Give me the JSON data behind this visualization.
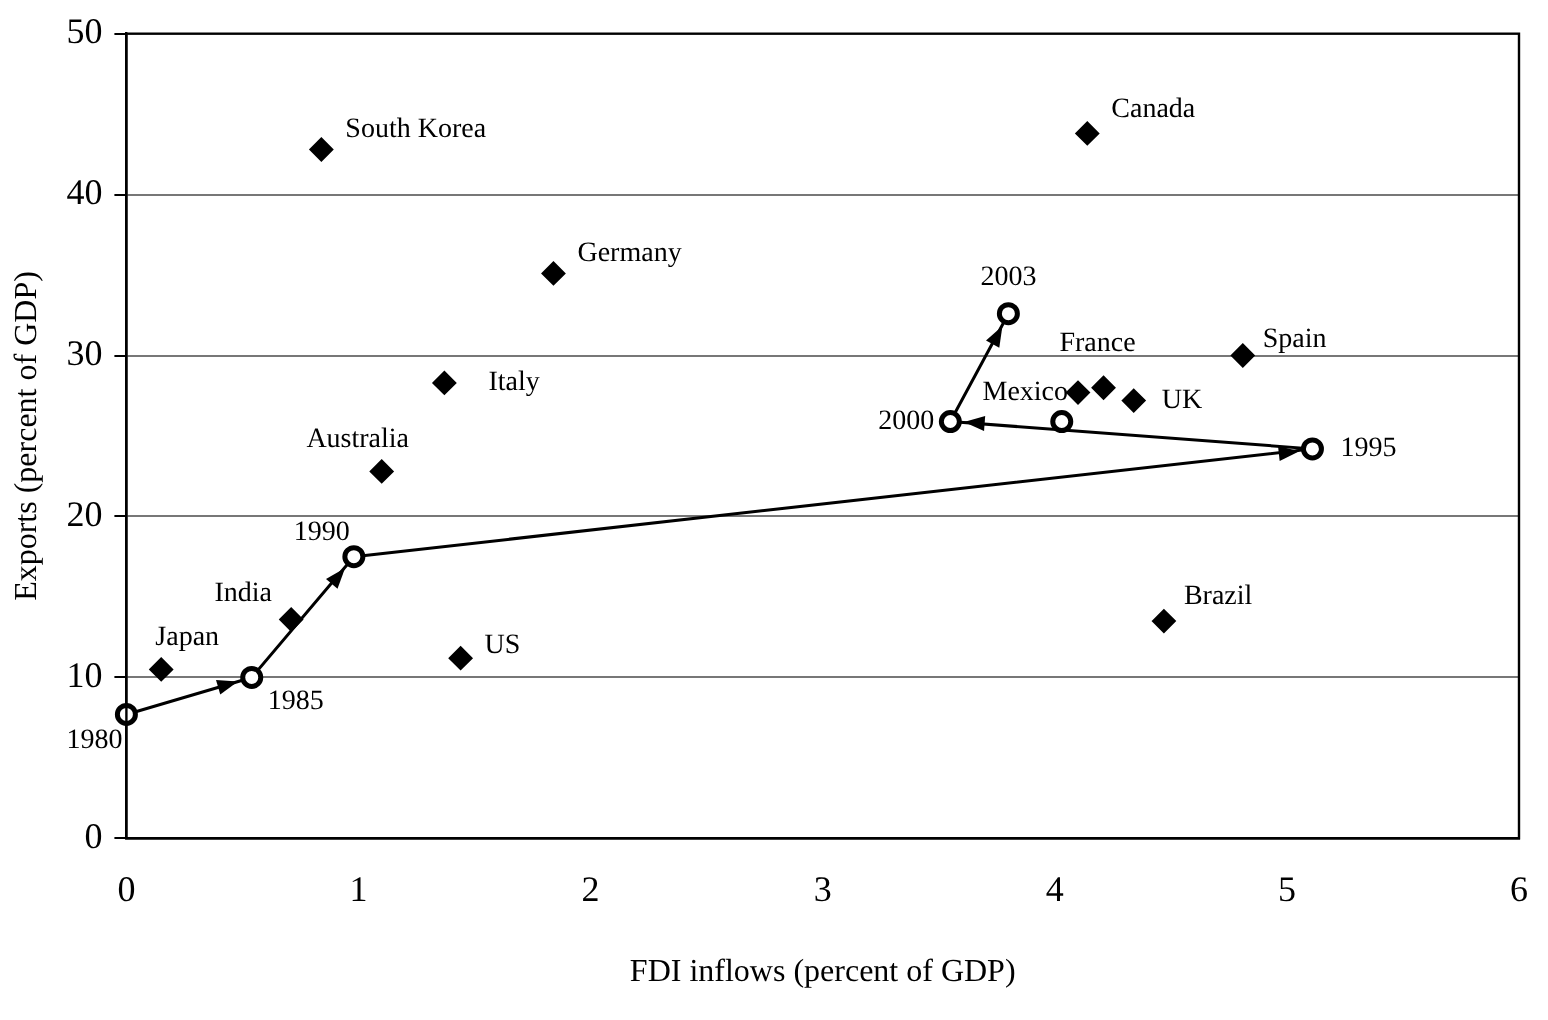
{
  "chart_data": {
    "type": "scatter",
    "xlabel": "FDI inflows (percent of GDP)",
    "ylabel": "Exports (percent of GDP)",
    "xlim": [
      0,
      6
    ],
    "xticks": [
      0,
      1,
      2,
      3,
      4,
      5,
      6
    ],
    "ylim": [
      0,
      50
    ],
    "yticks": [
      0,
      10,
      20,
      30,
      40,
      50
    ],
    "grid": "y",
    "legend": false,
    "series": [
      {
        "marker": "diamond",
        "color": "#000000",
        "x": [
          0.84,
          4.14,
          1.84,
          1.37,
          1.1,
          4.81,
          4.21,
          4.1,
          4.34,
          4.47,
          0.71,
          0.15,
          1.44
        ],
        "values": [
          42.8,
          43.8,
          35.1,
          28.3,
          22.8,
          30.0,
          28.0,
          27.7,
          27.2,
          13.5,
          13.6,
          10.5,
          11.2
        ]
      },
      {
        "type": "line",
        "marker": "circle",
        "line_style": "solid",
        "color": "#000000",
        "x": [
          0,
          0.54,
          0.98,
          5.11,
          3.55,
          3.8
        ],
        "values": [
          7.7,
          10.0,
          17.5,
          24.2,
          25.9,
          32.6
        ]
      },
      {
        "marker": "circle",
        "color": "#000000",
        "x": [
          4.03
        ],
        "values": [
          25.9
        ]
      }
    ],
    "annotations": [
      {
        "text": "South Korea",
        "x": 0.84,
        "y": 42.8
      },
      {
        "text": "Canada",
        "x": 4.14,
        "y": 43.8
      },
      {
        "text": "Germany",
        "x": 1.84,
        "y": 35.1
      },
      {
        "text": "Italy",
        "x": 1.37,
        "y": 28.3
      },
      {
        "text": "Australia",
        "x": 1.1,
        "y": 22.8
      },
      {
        "text": "Spain",
        "x": 4.81,
        "y": 30.0
      },
      {
        "text": "France",
        "x": 4.21,
        "y": 28.0
      },
      {
        "text": "Mexico",
        "x": 4.1,
        "y": 27.7
      },
      {
        "text": "UK",
        "x": 4.34,
        "y": 27.2
      },
      {
        "text": "Brazil",
        "x": 4.47,
        "y": 13.5
      },
      {
        "text": "India",
        "x": 0.71,
        "y": 13.6
      },
      {
        "text": "Japan",
        "x": 0.15,
        "y": 10.5
      },
      {
        "text": "US",
        "x": 1.44,
        "y": 11.2
      },
      {
        "text": "1980",
        "x": 0,
        "y": 7.7
      },
      {
        "text": "1985",
        "x": 0.54,
        "y": 10.0
      },
      {
        "text": "1990",
        "x": 0.98,
        "y": 17.5
      },
      {
        "text": "1995",
        "x": 5.11,
        "y": 24.2
      },
      {
        "text": "2000",
        "x": 3.55,
        "y": 25.9
      },
      {
        "text": "2003",
        "x": 3.8,
        "y": 32.6
      }
    ]
  }
}
